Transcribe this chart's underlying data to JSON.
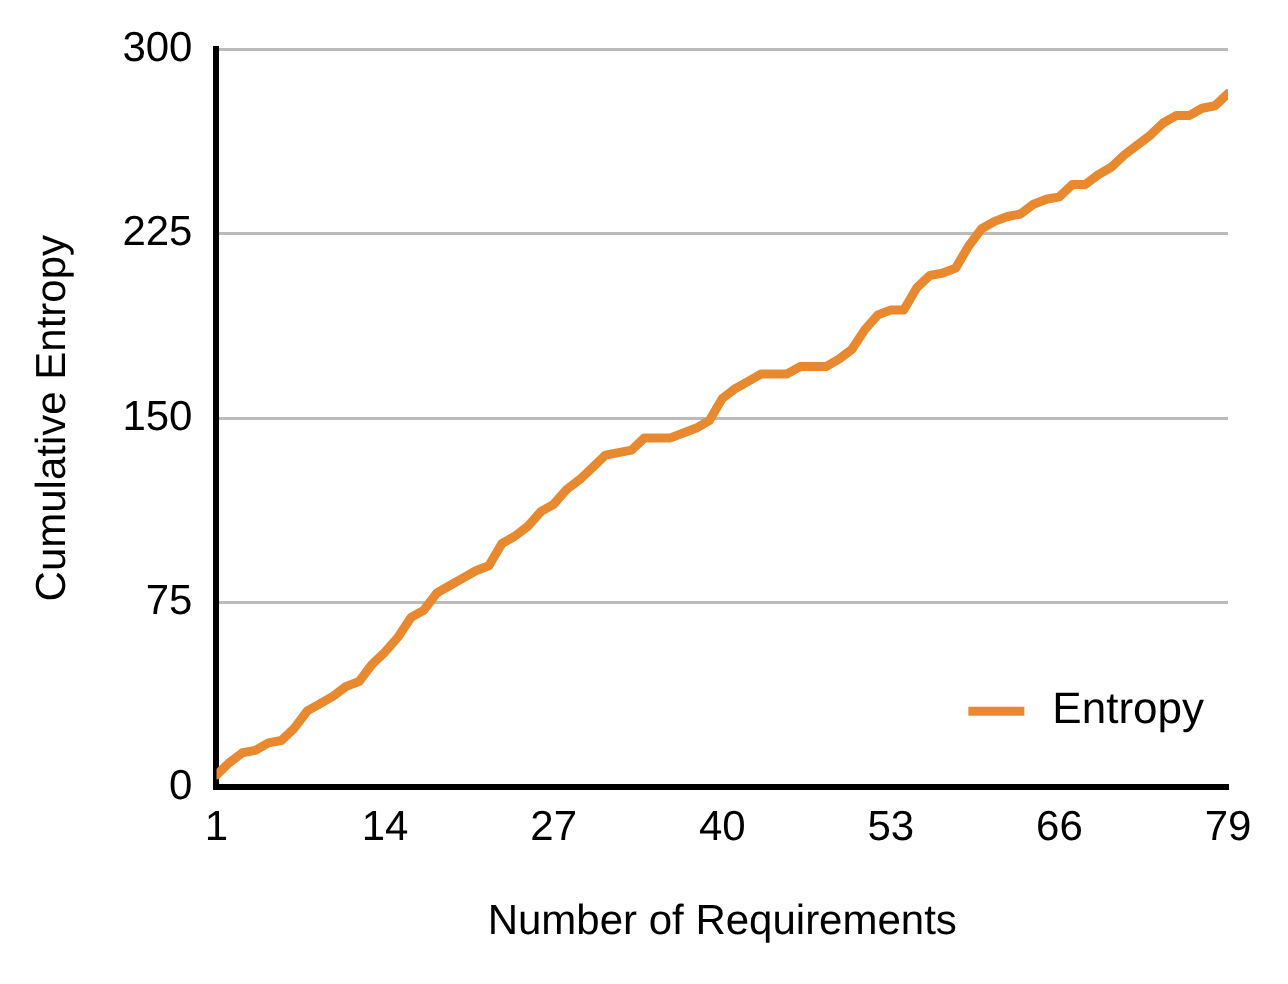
{
  "chart_data": {
    "type": "line",
    "xlabel": "Number of Requirements",
    "ylabel": "Cumulative Entropy",
    "x": [
      1,
      2,
      3,
      4,
      5,
      6,
      7,
      8,
      9,
      10,
      11,
      12,
      13,
      14,
      15,
      16,
      17,
      18,
      19,
      20,
      21,
      22,
      23,
      24,
      25,
      26,
      27,
      28,
      29,
      30,
      31,
      32,
      33,
      34,
      35,
      36,
      37,
      38,
      39,
      40,
      41,
      42,
      43,
      44,
      45,
      46,
      47,
      48,
      49,
      50,
      51,
      52,
      53,
      54,
      55,
      56,
      57,
      58,
      59,
      60,
      61,
      62,
      63,
      64,
      65,
      66,
      67,
      68,
      69,
      70,
      71,
      72,
      73,
      74,
      75,
      76,
      77,
      78,
      79
    ],
    "series": [
      {
        "name": "Entropy",
        "color": "#e8892f",
        "values": [
          5,
          10,
          14,
          15,
          18,
          19,
          24,
          31,
          34,
          37,
          41,
          43,
          50,
          55,
          61,
          69,
          72,
          79,
          82,
          85,
          88,
          90,
          99,
          102,
          106,
          112,
          115,
          121,
          125,
          130,
          135,
          136,
          137,
          142,
          142,
          142,
          144,
          146,
          149,
          158,
          162,
          165,
          168,
          168,
          168,
          171,
          171,
          171,
          174,
          178,
          186,
          192,
          194,
          194,
          203,
          208,
          209,
          211,
          220,
          227,
          230,
          232,
          233,
          237,
          239,
          240,
          245,
          245,
          249,
          252,
          257,
          261,
          265,
          270,
          273,
          273,
          276,
          277,
          282
        ]
      }
    ],
    "xlim": [
      1,
      79
    ],
    "xticks": [
      1,
      14,
      27,
      40,
      53,
      66,
      79
    ],
    "ylim": [
      0,
      300
    ],
    "yticks": [
      0,
      75,
      150,
      225,
      300
    ],
    "grid": "y",
    "legend": "bottom right",
    "marker": "none",
    "line_style": "solid"
  }
}
